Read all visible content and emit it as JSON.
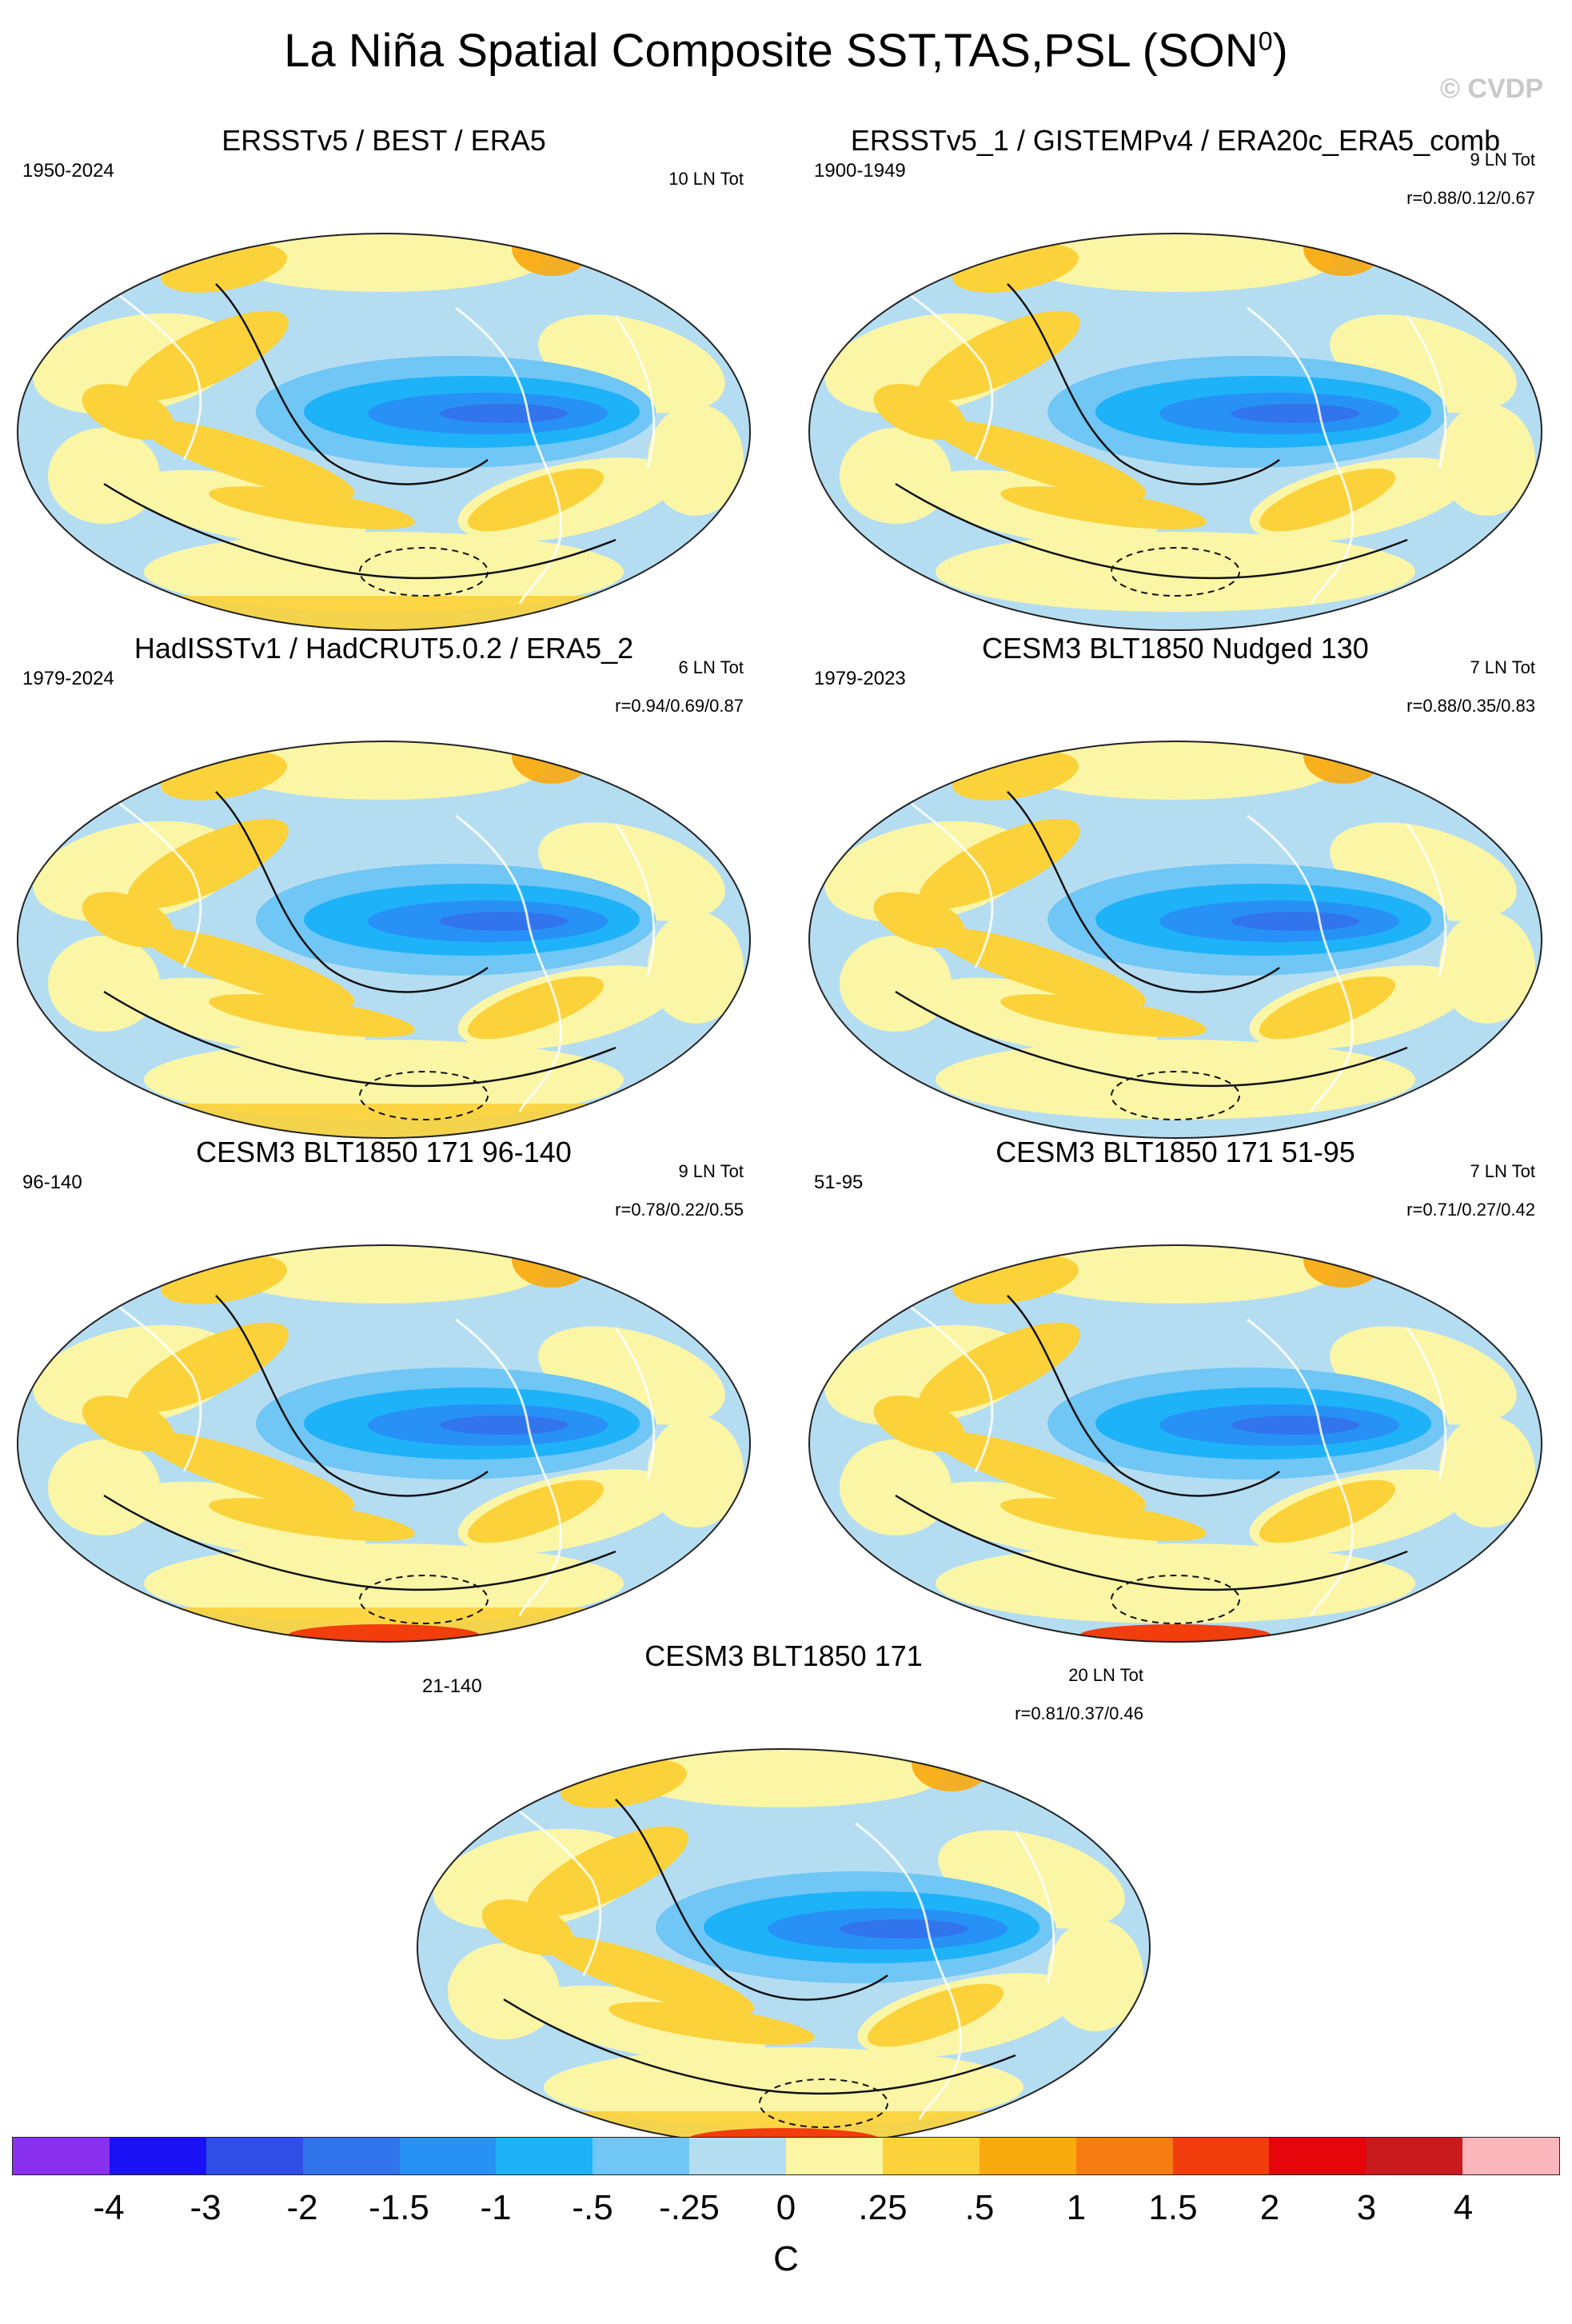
{
  "page": {
    "title": "La Niña Spatial Composite SST,TAS,PSL (SON",
    "title_superscript": "0",
    "title_close": ")",
    "watermark": "© CVDP"
  },
  "panels": [
    {
      "title": "ERSSTv5 / BEST / ERA5",
      "years": "1950-2024",
      "count": "10 LN Tot",
      "corr": ""
    },
    {
      "title": "ERSSTv5_1 / GISTEMPv4 / ERA20c_ERA5_comb",
      "years": "1900-1949",
      "count": "9 LN Tot",
      "corr": "r=0.88/0.12/0.67"
    },
    {
      "title": "HadISSTv1 / HadCRUT5.0.2 / ERA5_2",
      "years": "1979-2024",
      "count": "6 LN Tot",
      "corr": "r=0.94/0.69/0.87"
    },
    {
      "title": "CESM3 BLT1850 Nudged 130",
      "years": "1979-2023",
      "count": "7 LN Tot",
      "corr": "r=0.88/0.35/0.83"
    },
    {
      "title": "CESM3 BLT1850 171 96-140",
      "years": "96-140",
      "count": "9 LN Tot",
      "corr": "r=0.78/0.22/0.55"
    },
    {
      "title": "CESM3 BLT1850 171 51-95",
      "years": "51-95",
      "count": "7 LN Tot",
      "corr": "r=0.71/0.27/0.42"
    },
    {
      "title": "CESM3 BLT1850 171",
      "years": "21-140",
      "count": "20 LN Tot",
      "corr": "r=0.81/0.37/0.46"
    }
  ],
  "colorbar": {
    "colors": [
      "#8a30ef",
      "#1a12f5",
      "#2e4ee6",
      "#3274ec",
      "#2791f5",
      "#1eb2f8",
      "#70c6f4",
      "#b5ddf2",
      "#fbf6a6",
      "#fbd23a",
      "#f8a90d",
      "#f77d12",
      "#f23d0c",
      "#e5050b",
      "#c91b1e",
      "#fbb6bc"
    ],
    "labels": [
      "-4",
      "-3",
      "-2",
      "-1.5",
      "-1",
      "-.5",
      "-.25",
      "0",
      ".25",
      ".5",
      "1",
      "1.5",
      "2",
      "3",
      "4"
    ],
    "units": "C"
  }
}
